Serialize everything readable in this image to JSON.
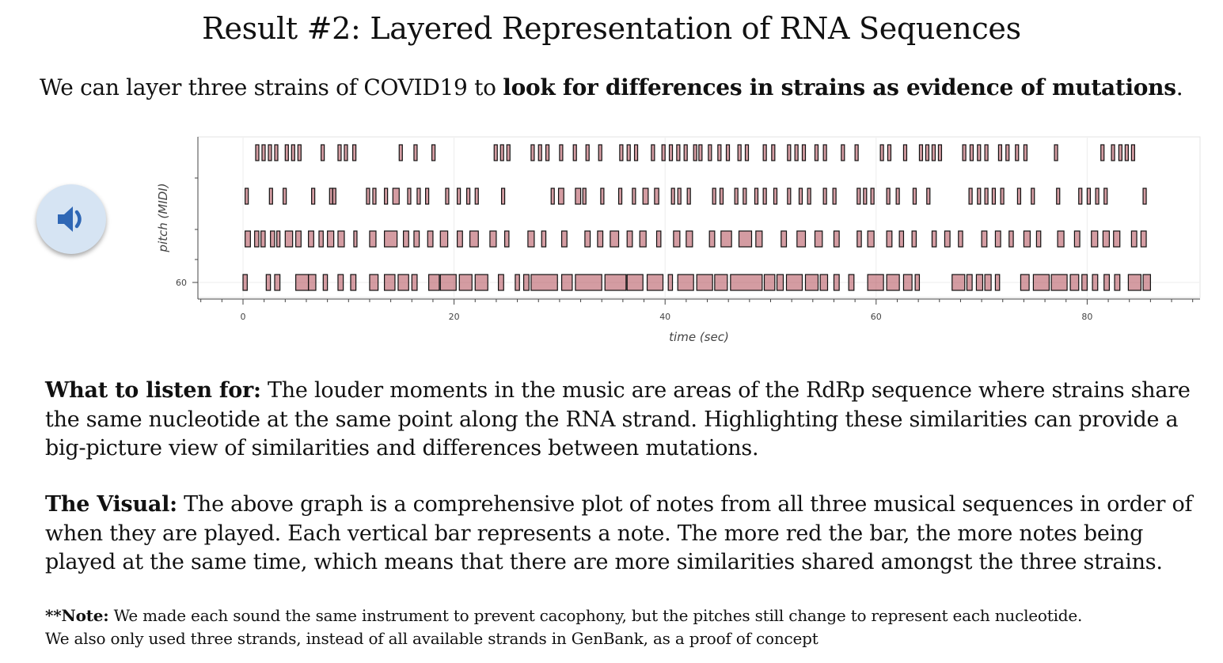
{
  "title": "Result #2: Layered Representation of RNA Sequences",
  "intro": {
    "prefix": "We can layer three  strains of COVID19 to ",
    "bold": "look for differences in strains as evidence of mutations",
    "suffix": "."
  },
  "audio_button": {
    "icon": "speaker-volume-icon"
  },
  "listen": {
    "heading": "What to listen for:",
    "text": " The louder moments in the music are areas of the RdRp sequence where strains share the same nucleotide at the same point along the RNA strand. Highlighting these similarities can provide a big-picture view of similarities and differences between mutations."
  },
  "visual": {
    "heading": "The Visual:",
    "text": " The above graph is a comprehensive plot of notes from all three musical sequences in order of when they are played. Each vertical bar represents a note. The more red the bar, the more notes being played at the same time, which means that there are more similarities shared amongst the three strains."
  },
  "note": {
    "heading": "**Note:",
    "line1": " We made each sound the same instrument to prevent cacophony, but the pitches still change to represent each nucleotide.",
    "line2": "We also only used three strands, instead of all available strands in GenBank, as a proof of concept"
  },
  "chart_data": {
    "type": "piano-roll",
    "title": "",
    "xlabel": "time (sec)",
    "ylabel": "pitch (MIDI)",
    "xlim": [
      -5,
      91
    ],
    "x_ticks": [
      0,
      20,
      40,
      60,
      80
    ],
    "y_ticks": [
      60
    ],
    "grid": true,
    "note_color": "#b04a55",
    "note_border": "#111111",
    "rows": [
      {
        "pitch": 60,
        "notes": [
          [
            0,
            0.4
          ],
          [
            2.2,
            0.4
          ],
          [
            3.0,
            0.5
          ],
          [
            5.0,
            1.2
          ],
          [
            6.2,
            0.7
          ],
          [
            7.6,
            0.4
          ],
          [
            9.0,
            0.5
          ],
          [
            10.2,
            0.5
          ],
          [
            12.0,
            0.8
          ],
          [
            13.4,
            1.0
          ],
          [
            14.7,
            1.0
          ],
          [
            16.0,
            0.5
          ],
          [
            17.6,
            1.0
          ],
          [
            18.7,
            1.5
          ],
          [
            20.5,
            1.2
          ],
          [
            22.0,
            1.2
          ],
          [
            24.2,
            0.5
          ],
          [
            25.8,
            0.4
          ],
          [
            26.6,
            0.5
          ],
          [
            27.3,
            2.5
          ],
          [
            30.2,
            1.0
          ],
          [
            31.5,
            2.5
          ],
          [
            34.3,
            2.0
          ],
          [
            36.4,
            1.5
          ],
          [
            38.3,
            1.5
          ],
          [
            40.3,
            0.4
          ],
          [
            41.2,
            1.5
          ],
          [
            43.0,
            1.5
          ],
          [
            44.7,
            1.2
          ],
          [
            46.2,
            3.0
          ],
          [
            49.4,
            1.0
          ],
          [
            50.6,
            0.6
          ],
          [
            51.5,
            1.5
          ],
          [
            53.3,
            1.2
          ],
          [
            54.7,
            0.7
          ],
          [
            56.0,
            0.5
          ],
          [
            57.4,
            0.5
          ],
          [
            59.2,
            1.5
          ],
          [
            61.0,
            1.2
          ],
          [
            62.6,
            0.8
          ],
          [
            63.7,
            0.4
          ],
          [
            67.2,
            1.2
          ],
          [
            68.6,
            0.5
          ],
          [
            69.5,
            0.6
          ],
          [
            70.3,
            0.6
          ],
          [
            71.3,
            0.4
          ],
          [
            73.7,
            0.8
          ],
          [
            74.9,
            1.5
          ],
          [
            76.6,
            1.5
          ],
          [
            78.4,
            0.8
          ],
          [
            79.5,
            0.5
          ],
          [
            80.5,
            0.5
          ],
          [
            81.6,
            0.5
          ],
          [
            82.6,
            0.5
          ],
          [
            83.9,
            1.2
          ],
          [
            85.3,
            0.7
          ]
        ]
      },
      {
        "pitch": 61,
        "notes": [
          [
            0.2,
            0.5
          ],
          [
            1.1,
            0.4
          ],
          [
            1.7,
            0.4
          ],
          [
            2.6,
            0.4
          ],
          [
            3.2,
            0.3
          ],
          [
            4.0,
            0.7
          ],
          [
            5.0,
            0.5
          ],
          [
            6.2,
            0.5
          ],
          [
            7.2,
            0.4
          ],
          [
            8.0,
            0.6
          ],
          [
            9.0,
            0.6
          ],
          [
            10.5,
            0.3
          ],
          [
            12.0,
            0.6
          ],
          [
            13.4,
            1.2
          ],
          [
            15.2,
            0.5
          ],
          [
            16.2,
            0.5
          ],
          [
            17.5,
            0.5
          ],
          [
            18.7,
            0.7
          ],
          [
            20.3,
            0.5
          ],
          [
            21.5,
            0.8
          ],
          [
            23.4,
            0.6
          ],
          [
            24.8,
            0.4
          ],
          [
            27.0,
            0.6
          ],
          [
            28.3,
            0.4
          ],
          [
            30.2,
            0.5
          ],
          [
            32.4,
            0.5
          ],
          [
            33.6,
            0.5
          ],
          [
            34.8,
            0.8
          ],
          [
            36.4,
            0.5
          ],
          [
            37.6,
            0.6
          ],
          [
            39.2,
            0.4
          ],
          [
            40.8,
            0.6
          ],
          [
            42.0,
            0.6
          ],
          [
            44.2,
            0.5
          ],
          [
            45.3,
            1.0
          ],
          [
            47.0,
            1.2
          ],
          [
            48.6,
            0.6
          ],
          [
            51.0,
            0.5
          ],
          [
            52.5,
            0.8
          ],
          [
            54.2,
            0.7
          ],
          [
            56.0,
            0.5
          ],
          [
            58.2,
            0.4
          ],
          [
            59.2,
            0.6
          ],
          [
            61.0,
            0.5
          ],
          [
            62.2,
            0.4
          ],
          [
            63.4,
            0.4
          ],
          [
            65.3,
            0.4
          ],
          [
            66.5,
            0.5
          ],
          [
            67.8,
            0.4
          ],
          [
            70.0,
            0.5
          ],
          [
            71.3,
            0.5
          ],
          [
            72.6,
            0.4
          ],
          [
            74.0,
            0.6
          ],
          [
            75.2,
            0.4
          ],
          [
            77.2,
            0.6
          ],
          [
            78.8,
            0.5
          ],
          [
            80.4,
            0.6
          ],
          [
            81.5,
            0.6
          ],
          [
            82.5,
            0.6
          ],
          [
            84.2,
            0.5
          ],
          [
            85.1,
            0.5
          ]
        ]
      },
      {
        "pitch": 62,
        "notes": [
          [
            0.2,
            0.3
          ],
          [
            2.5,
            0.3
          ],
          [
            3.8,
            0.3
          ],
          [
            6.5,
            0.3
          ],
          [
            8.2,
            0.3
          ],
          [
            8.5,
            0.3
          ],
          [
            11.7,
            0.3
          ],
          [
            12.3,
            0.3
          ],
          [
            13.4,
            0.3
          ],
          [
            14.2,
            0.6
          ],
          [
            15.6,
            0.3
          ],
          [
            16.5,
            0.3
          ],
          [
            17.3,
            0.3
          ],
          [
            19.2,
            0.3
          ],
          [
            20.3,
            0.3
          ],
          [
            21.2,
            0.3
          ],
          [
            22.0,
            0.3
          ],
          [
            24.5,
            0.3
          ],
          [
            29.2,
            0.3
          ],
          [
            29.9,
            0.5
          ],
          [
            31.5,
            0.5
          ],
          [
            32.2,
            0.3
          ],
          [
            33.9,
            0.3
          ],
          [
            35.6,
            0.3
          ],
          [
            36.9,
            0.3
          ],
          [
            37.9,
            0.5
          ],
          [
            39.0,
            0.4
          ],
          [
            40.6,
            0.3
          ],
          [
            41.2,
            0.3
          ],
          [
            42.1,
            0.3
          ],
          [
            44.5,
            0.3
          ],
          [
            45.2,
            0.3
          ],
          [
            46.6,
            0.3
          ],
          [
            47.4,
            0.3
          ],
          [
            48.5,
            0.3
          ],
          [
            49.3,
            0.3
          ],
          [
            50.3,
            0.3
          ],
          [
            51.6,
            0.3
          ],
          [
            52.7,
            0.3
          ],
          [
            53.5,
            0.3
          ],
          [
            55.0,
            0.3
          ],
          [
            55.9,
            0.3
          ],
          [
            58.2,
            0.3
          ],
          [
            58.8,
            0.3
          ],
          [
            59.5,
            0.3
          ],
          [
            61.0,
            0.3
          ],
          [
            61.9,
            0.3
          ],
          [
            63.5,
            0.3
          ],
          [
            64.8,
            0.3
          ],
          [
            68.8,
            0.3
          ],
          [
            69.6,
            0.3
          ],
          [
            70.3,
            0.3
          ],
          [
            71.0,
            0.3
          ],
          [
            71.8,
            0.3
          ],
          [
            73.4,
            0.3
          ],
          [
            74.7,
            0.3
          ],
          [
            77.1,
            0.3
          ],
          [
            79.2,
            0.3
          ],
          [
            80.0,
            0.3
          ],
          [
            80.8,
            0.3
          ],
          [
            81.6,
            0.3
          ],
          [
            85.3,
            0.3
          ]
        ]
      },
      {
        "pitch": 63,
        "notes": [
          [
            1.2,
            0.3
          ],
          [
            1.8,
            0.3
          ],
          [
            2.4,
            0.3
          ],
          [
            3.0,
            0.3
          ],
          [
            4.0,
            0.3
          ],
          [
            4.6,
            0.3
          ],
          [
            5.2,
            0.3
          ],
          [
            7.4,
            0.3
          ],
          [
            9.0,
            0.3
          ],
          [
            9.6,
            0.3
          ],
          [
            10.4,
            0.3
          ],
          [
            14.8,
            0.3
          ],
          [
            16.2,
            0.3
          ],
          [
            17.9,
            0.3
          ],
          [
            23.8,
            0.3
          ],
          [
            24.4,
            0.3
          ],
          [
            25.0,
            0.3
          ],
          [
            27.3,
            0.3
          ],
          [
            28.0,
            0.3
          ],
          [
            28.7,
            0.3
          ],
          [
            30.0,
            0.3
          ],
          [
            31.3,
            0.3
          ],
          [
            32.5,
            0.3
          ],
          [
            33.7,
            0.3
          ],
          [
            35.7,
            0.3
          ],
          [
            36.4,
            0.3
          ],
          [
            37.1,
            0.3
          ],
          [
            38.7,
            0.3
          ],
          [
            39.7,
            0.3
          ],
          [
            40.4,
            0.3
          ],
          [
            41.1,
            0.3
          ],
          [
            41.8,
            0.3
          ],
          [
            42.7,
            0.3
          ],
          [
            43.2,
            0.3
          ],
          [
            44.1,
            0.3
          ],
          [
            45.0,
            0.3
          ],
          [
            45.8,
            0.3
          ],
          [
            46.9,
            0.3
          ],
          [
            47.6,
            0.3
          ],
          [
            49.3,
            0.3
          ],
          [
            50.1,
            0.3
          ],
          [
            51.6,
            0.3
          ],
          [
            52.3,
            0.3
          ],
          [
            53.0,
            0.3
          ],
          [
            54.2,
            0.3
          ],
          [
            55.0,
            0.3
          ],
          [
            56.7,
            0.3
          ],
          [
            58.0,
            0.3
          ],
          [
            60.4,
            0.3
          ],
          [
            61.1,
            0.3
          ],
          [
            62.6,
            0.3
          ],
          [
            64.1,
            0.3
          ],
          [
            64.7,
            0.3
          ],
          [
            65.3,
            0.3
          ],
          [
            65.9,
            0.3
          ],
          [
            68.2,
            0.3
          ],
          [
            68.9,
            0.3
          ],
          [
            69.6,
            0.3
          ],
          [
            70.3,
            0.3
          ],
          [
            71.6,
            0.3
          ],
          [
            72.3,
            0.3
          ],
          [
            73.2,
            0.3
          ],
          [
            74.0,
            0.3
          ],
          [
            76.9,
            0.3
          ],
          [
            81.3,
            0.3
          ],
          [
            82.3,
            0.3
          ],
          [
            83.0,
            0.3
          ],
          [
            83.6,
            0.3
          ],
          [
            84.2,
            0.3
          ]
        ]
      }
    ]
  }
}
